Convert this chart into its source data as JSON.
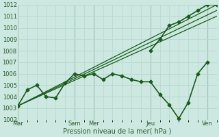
{
  "xlabel": "Pression niveau de la mer( hPa )",
  "bg_color": "#cce8e0",
  "grid_color": "#b8d8d0",
  "line_color": "#1a5c1a",
  "ylim": [
    1002,
    1012
  ],
  "yticks": [
    1002,
    1003,
    1004,
    1005,
    1006,
    1007,
    1008,
    1009,
    1010,
    1011,
    1012
  ],
  "day_labels": [
    "Mar",
    "Sam",
    "Mer",
    "Jeu",
    "Ven"
  ],
  "day_positions": [
    0,
    48,
    64,
    112,
    160
  ],
  "xlim": [
    0,
    168
  ],
  "series_main": {
    "x": [
      0,
      8,
      16,
      24,
      32,
      40,
      48,
      56,
      64,
      72,
      80,
      88,
      96,
      104,
      112,
      120,
      128,
      136,
      144,
      152,
      160
    ],
    "y": [
      1003.2,
      1004.6,
      1005.0,
      1004.0,
      1003.9,
      1005.2,
      1006.0,
      1005.8,
      1006.0,
      1005.5,
      1006.0,
      1005.8,
      1005.5,
      1005.3,
      1005.3,
      1004.2,
      1003.3,
      1002.1,
      1003.5,
      1006.0,
      1007.0
    ],
    "marker": "D",
    "markersize": 2.5,
    "linewidth": 1.2
  },
  "series_right": {
    "x": [
      112,
      120,
      128,
      136,
      144,
      152,
      160,
      168
    ],
    "y": [
      1008.0,
      1009.0,
      1010.2,
      1010.5,
      1011.0,
      1011.5,
      1012.0,
      1012.0
    ],
    "marker": "D",
    "markersize": 2.5,
    "linewidth": 1.2
  },
  "forecast1": {
    "x": [
      0,
      168
    ],
    "y": [
      1003.2,
      1012.0
    ],
    "linewidth": 0.9
  },
  "forecast2": {
    "x": [
      0,
      168
    ],
    "y": [
      1003.2,
      1011.5
    ],
    "linewidth": 0.9
  },
  "forecast3": {
    "x": [
      0,
      168
    ],
    "y": [
      1003.2,
      1011.0
    ],
    "linewidth": 0.9
  },
  "vline_color": "#7a9a90",
  "xlabel_fontsize": 7,
  "tick_fontsize": 6,
  "tick_color": "#2d5a2d"
}
